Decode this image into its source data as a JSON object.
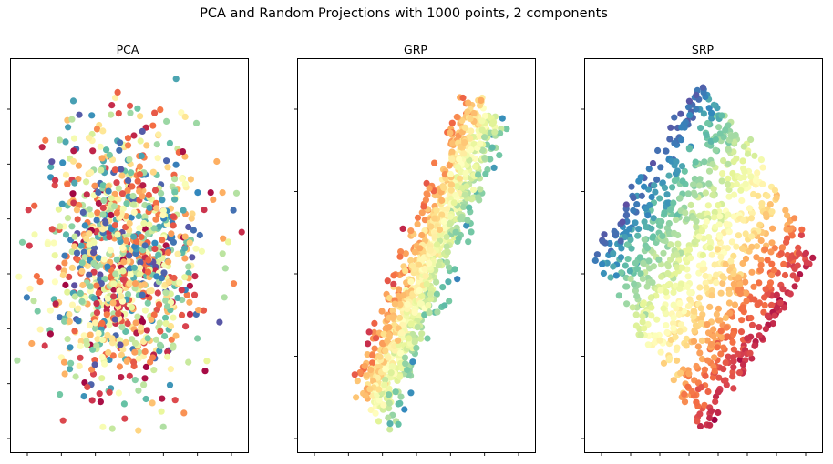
{
  "figure": {
    "title": "PCA and Random Projections with 1000 points, 2 components"
  },
  "chart_data": [
    {
      "type": "scatter",
      "title": "PCA",
      "colormap": "Spectral",
      "n_points": 1000,
      "xticklabels_visible": false,
      "yticklabels_visible": false,
      "shape": "diffuse-blob",
      "color_mixing": "random",
      "xlim": [
        -1,
        1
      ],
      "ylim": [
        -1,
        1
      ]
    },
    {
      "type": "scatter",
      "title": "GRP",
      "colormap": "Spectral",
      "n_points": 1000,
      "xticklabels_visible": false,
      "yticklabels_visible": false,
      "shape": "tilted-band",
      "color_mixing": "gradient-across-band",
      "xlim": [
        -1,
        1
      ],
      "ylim": [
        -1,
        1
      ]
    },
    {
      "type": "scatter",
      "title": "SRP",
      "colormap": "Spectral",
      "n_points": 1000,
      "xticklabels_visible": false,
      "yticklabels_visible": false,
      "shape": "diamond",
      "color_mixing": "gradient-along-diagonal",
      "xlim": [
        -1,
        1
      ],
      "ylim": [
        -1,
        1
      ]
    }
  ],
  "colors": {
    "spectral": [
      "#9e0142",
      "#d53e4f",
      "#f46d43",
      "#fdae61",
      "#fee08b",
      "#ffffbf",
      "#e6f598",
      "#abdda4",
      "#66c2a5",
      "#3288bd",
      "#5e4fa2"
    ]
  }
}
